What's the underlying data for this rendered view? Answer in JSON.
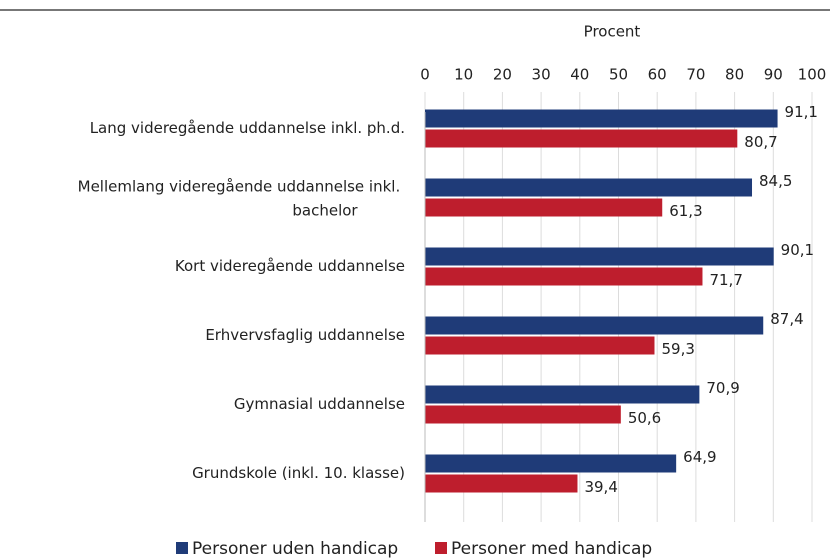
{
  "chart_data": {
    "type": "bar",
    "orientation": "horizontal",
    "x_axis_label": "Procent",
    "categories": [
      "Lang videregående uddannelse inkl. ph.d.",
      "Mellemlang videregående uddannelse inkl. bachelor",
      "Kort videregående uddannelse",
      "Erhvervsfaglig uddannelse",
      "Gymnasial uddannelse",
      "Grundskole (inkl. 10. klasse)"
    ],
    "series": [
      {
        "name": "Personer uden handicap",
        "color": "#1f3b78",
        "values": [
          91.1,
          84.5,
          90.1,
          87.4,
          70.9,
          64.9
        ],
        "value_labels": [
          "91,1",
          "84,5",
          "90,1",
          "87,4",
          "70,9",
          "64,9"
        ]
      },
      {
        "name": "Personer med handicap",
        "color": "#be1e2d",
        "values": [
          80.7,
          61.3,
          71.7,
          59.3,
          50.6,
          39.4
        ],
        "value_labels": [
          "80,7",
          "61,3",
          "71,7",
          "59,3",
          "50,6",
          "39,4"
        ]
      }
    ],
    "xlim": [
      0,
      100
    ],
    "xticks": [
      0,
      10,
      20,
      30,
      40,
      50,
      60,
      70,
      80,
      90,
      100
    ],
    "grid": true,
    "legend": "bottom"
  }
}
